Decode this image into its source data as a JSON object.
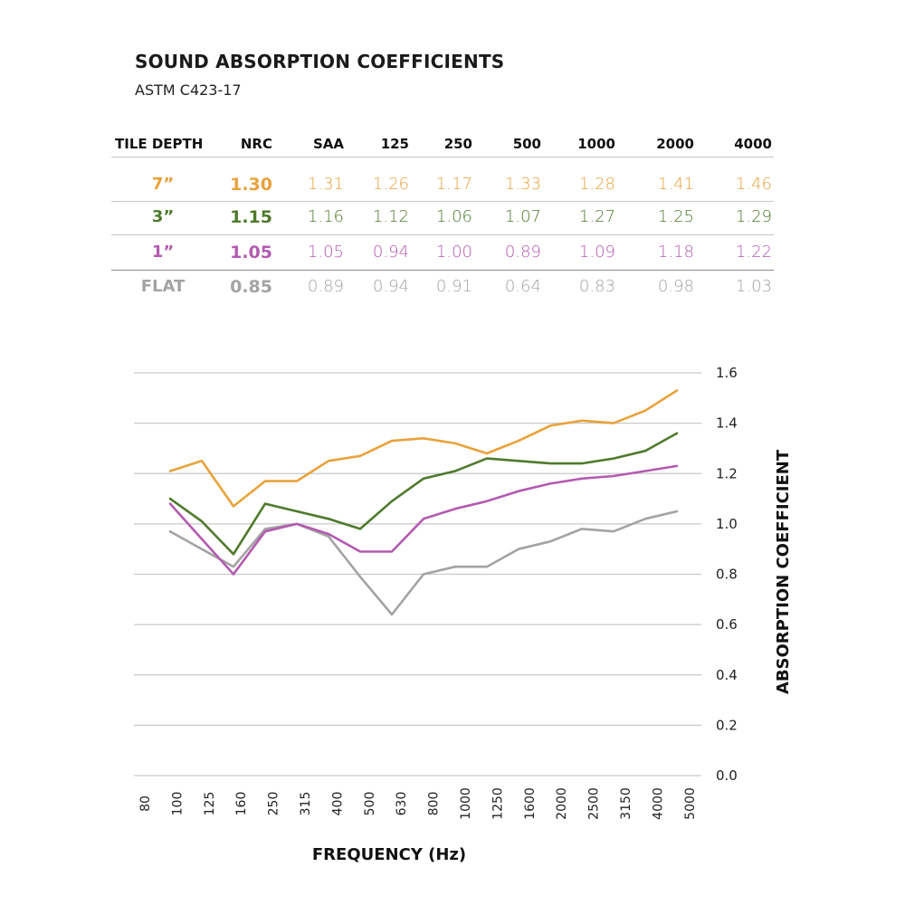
{
  "header": {
    "title": "SOUND ABSORPTION COEFFICIENTS",
    "subtitle": "ASTM C423-17"
  },
  "colors": {
    "7in": "#e8a23a",
    "3in": "#4f7a2c",
    "1in": "#b35bb0",
    "flat": "#a3a3a3"
  },
  "table": {
    "columns": [
      "TILE DEPTH",
      "NRC",
      "SAA",
      "125",
      "250",
      "500",
      "1000",
      "2000",
      "4000"
    ],
    "rows": [
      {
        "key": "7in",
        "depth": "7”",
        "nrc": "1.30",
        "values": [
          "1.31",
          "1.26",
          "1.17",
          "1.33",
          "1.28",
          "1.41",
          "1.46"
        ]
      },
      {
        "key": "3in",
        "depth": "3”",
        "nrc": "1.15",
        "values": [
          "1.16",
          "1.12",
          "1.06",
          "1.07",
          "1.27",
          "1.25",
          "1.29"
        ]
      },
      {
        "key": "1in",
        "depth": "1”",
        "nrc": "1.05",
        "values": [
          "1.05",
          "0.94",
          "1.00",
          "0.89",
          "1.09",
          "1.18",
          "1.22"
        ]
      },
      {
        "key": "flat",
        "depth": "FLAT",
        "nrc": "0.85",
        "values": [
          "0.89",
          "0.94",
          "0.91",
          "0.64",
          "0.83",
          "0.98",
          "1.03"
        ]
      }
    ]
  },
  "chart_data": {
    "type": "line",
    "title": "",
    "xlabel": "FREQUENCY (Hz)",
    "ylabel": "ABSORPTION COEFFICIENT",
    "x_tick_labels": [
      "80",
      "100",
      "125",
      "160",
      "250",
      "315",
      "400",
      "500",
      "630",
      "800",
      "1000",
      "1250",
      "1600",
      "2000",
      "2500",
      "3150",
      "4000",
      "5000"
    ],
    "x": [
      "100",
      "125",
      "160",
      "250",
      "315",
      "400",
      "500",
      "630",
      "800",
      "1000",
      "1250",
      "1600",
      "2000",
      "2500",
      "3150",
      "4000",
      "5000"
    ],
    "y_ticks": [
      "0.0",
      "0.2",
      "0.4",
      "0.6",
      "0.8",
      "1.0",
      "1.2",
      "1.4",
      "1.6"
    ],
    "ylim": [
      0,
      1.6
    ],
    "grid": true,
    "y_axis_side": "right",
    "series": [
      {
        "name": "7”",
        "key": "7in",
        "values": [
          1.21,
          1.25,
          1.07,
          1.17,
          1.17,
          1.25,
          1.27,
          1.33,
          1.34,
          1.32,
          1.28,
          1.33,
          1.39,
          1.41,
          1.4,
          1.45,
          1.53
        ]
      },
      {
        "name": "3”",
        "key": "3in",
        "values": [
          1.1,
          1.01,
          0.88,
          1.08,
          1.05,
          1.02,
          0.98,
          1.09,
          1.18,
          1.21,
          1.26,
          1.25,
          1.24,
          1.24,
          1.26,
          1.29,
          1.36
        ]
      },
      {
        "name": "1”",
        "key": "1in",
        "values": [
          1.08,
          0.94,
          0.8,
          0.97,
          1.0,
          0.96,
          0.89,
          0.89,
          1.02,
          1.06,
          1.09,
          1.13,
          1.16,
          1.18,
          1.19,
          1.21,
          1.23
        ]
      },
      {
        "name": "FLAT",
        "key": "flat",
        "values": [
          0.97,
          0.9,
          0.83,
          0.98,
          1.0,
          0.95,
          0.79,
          0.64,
          0.8,
          0.83,
          0.83,
          0.9,
          0.93,
          0.98,
          0.97,
          1.02,
          1.05
        ]
      }
    ]
  }
}
